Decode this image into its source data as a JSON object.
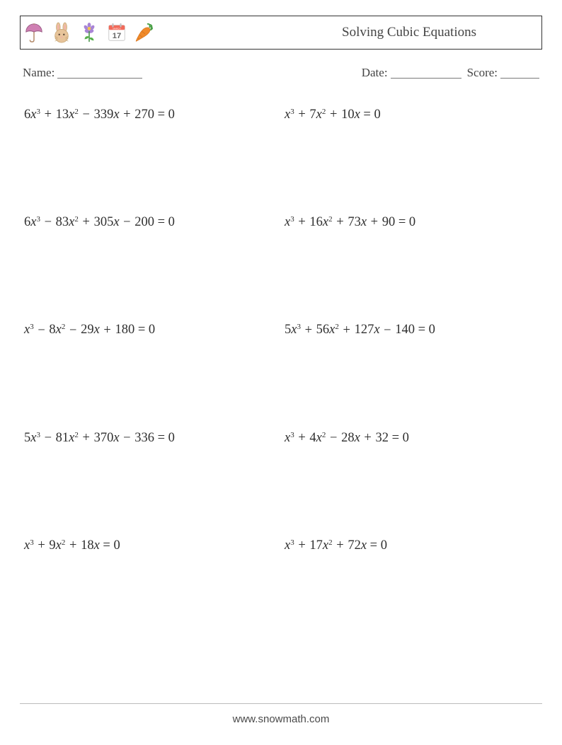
{
  "header": {
    "title": "Solving Cubic Equations",
    "icons": [
      "umbrella-icon",
      "bunny-icon",
      "flower-icon",
      "calendar-icon",
      "carrot-icon"
    ]
  },
  "meta": {
    "name_label": "Name:",
    "date_label": "Date:",
    "score_label": "Score:"
  },
  "colors": {
    "text": "#333333",
    "border": "#333333",
    "footer_rule": "#bcbcbc",
    "background": "#ffffff",
    "umbrella": "#cf7fb3",
    "bunny": "#e7c49a",
    "bunny_ear_pink": "#f2b1a8",
    "flower_petal": "#a884d6",
    "flower_center": "#f2c44c",
    "flower_stem": "#3f8f3f",
    "calendar_header": "#f26a5a",
    "calendar_body": "#ffffff",
    "calendar_text": "#666666",
    "carrot_body": "#f08a2a",
    "carrot_leaf": "#49a046"
  },
  "calendar": {
    "month": "MARCH",
    "day": "17"
  },
  "problems": {
    "layout": {
      "rows": 5,
      "cols": 2
    },
    "font_size_pt": 14,
    "items": [
      {
        "a": 6,
        "b": 13,
        "c": -339,
        "d": 270
      },
      {
        "a": 1,
        "b": 7,
        "c": 10,
        "d": 0
      },
      {
        "a": 6,
        "b": -83,
        "c": 305,
        "d": -200
      },
      {
        "a": 1,
        "b": 16,
        "c": 73,
        "d": 90
      },
      {
        "a": 1,
        "b": -8,
        "c": -29,
        "d": 180
      },
      {
        "a": 5,
        "b": 56,
        "c": 127,
        "d": -140
      },
      {
        "a": 5,
        "b": -81,
        "c": 370,
        "d": -336
      },
      {
        "a": 1,
        "b": 4,
        "c": -28,
        "d": 32
      },
      {
        "a": 1,
        "b": 9,
        "c": 18,
        "d": 0
      },
      {
        "a": 1,
        "b": 17,
        "c": 72,
        "d": 0
      }
    ]
  },
  "footer": {
    "text": "www.snowmath.com"
  }
}
